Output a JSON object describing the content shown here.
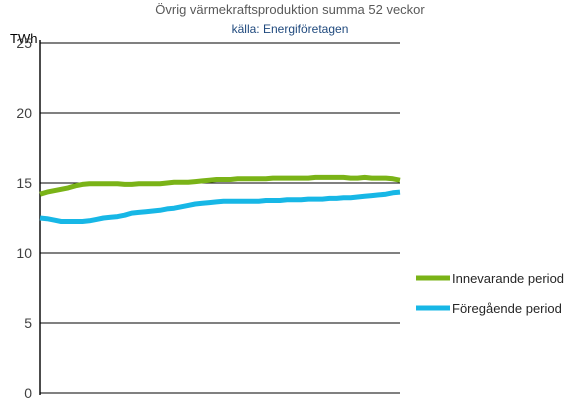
{
  "chart_data": {
    "type": "line",
    "title": "Övrig värmekraftsproduktion  summa 52 veckor",
    "subtitle": "källa: Energiföretagen",
    "ylabel": "TWh",
    "xlabel": "",
    "ylim": [
      0,
      25
    ],
    "yticks": [
      0,
      5,
      10,
      15,
      20,
      25
    ],
    "grid": true,
    "legend_position": "right",
    "x": [
      1,
      2,
      3,
      4,
      5,
      6,
      7,
      8,
      9,
      10,
      11,
      12,
      13,
      14,
      15,
      16,
      17,
      18,
      19,
      20,
      21,
      22,
      23,
      24,
      25,
      26,
      27,
      28,
      29,
      30,
      31,
      32,
      33,
      34,
      35,
      36,
      37,
      38,
      39,
      40,
      41,
      42,
      43,
      44,
      45,
      46,
      47,
      48,
      49,
      50,
      51,
      52
    ],
    "series": [
      {
        "name": "Innevarande period",
        "color": "#7ab317",
        "values": [
          14.2,
          14.35,
          14.45,
          14.55,
          14.65,
          14.8,
          14.9,
          14.95,
          14.95,
          14.95,
          14.95,
          14.95,
          14.9,
          14.9,
          14.95,
          14.95,
          14.95,
          14.95,
          15.0,
          15.05,
          15.05,
          15.05,
          15.1,
          15.15,
          15.2,
          15.25,
          15.25,
          15.25,
          15.3,
          15.3,
          15.3,
          15.3,
          15.3,
          15.35,
          15.35,
          15.35,
          15.35,
          15.35,
          15.35,
          15.4,
          15.4,
          15.4,
          15.4,
          15.4,
          15.35,
          15.35,
          15.4,
          15.35,
          15.35,
          15.35,
          15.3,
          15.2
        ]
      },
      {
        "name": "Föregående period",
        "color": "#17b7e6",
        "values": [
          12.5,
          12.45,
          12.35,
          12.25,
          12.25,
          12.25,
          12.25,
          12.3,
          12.4,
          12.5,
          12.55,
          12.6,
          12.7,
          12.85,
          12.9,
          12.95,
          13.0,
          13.05,
          13.15,
          13.2,
          13.3,
          13.4,
          13.5,
          13.55,
          13.6,
          13.65,
          13.7,
          13.7,
          13.7,
          13.7,
          13.7,
          13.7,
          13.75,
          13.75,
          13.75,
          13.8,
          13.8,
          13.8,
          13.85,
          13.85,
          13.85,
          13.9,
          13.9,
          13.95,
          13.95,
          14.0,
          14.05,
          14.1,
          14.15,
          14.2,
          14.3,
          14.35
        ]
      }
    ]
  }
}
